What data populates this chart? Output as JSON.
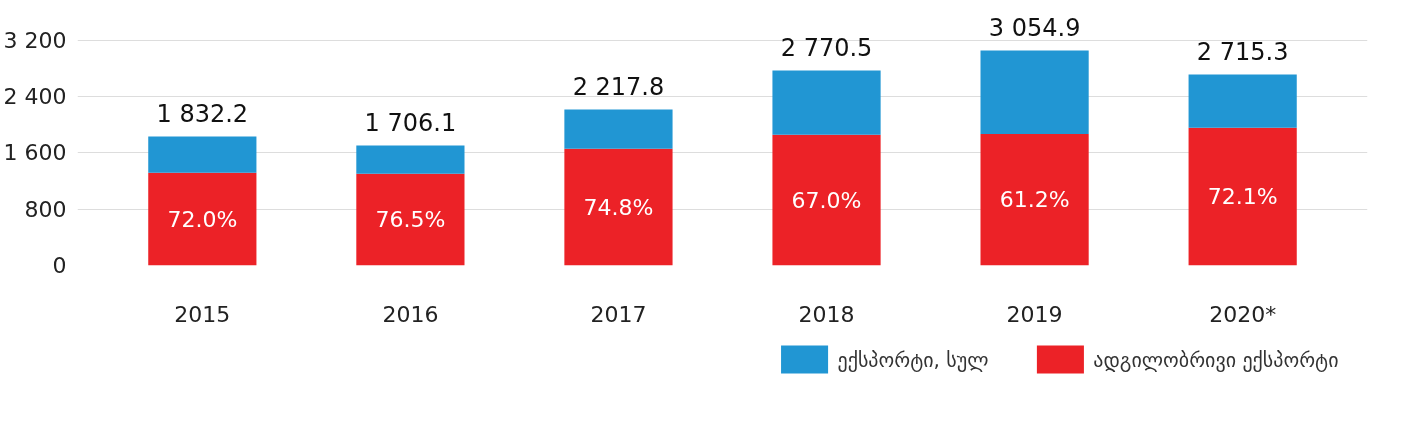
{
  "chart_data": {
    "type": "bar",
    "stacked": true,
    "categories": [
      "2015",
      "2016",
      "2017",
      "2018",
      "2019",
      "2020*"
    ],
    "series": [
      {
        "name": "ადგილობრივი ექსპორტი",
        "color": "#ec2227",
        "values": [
          1319.2,
          1305.2,
          1658.9,
          1856.2,
          1869.6,
          1957.7
        ]
      },
      {
        "name": "ექსპორტი, სულ",
        "color": "#2196d3",
        "values": [
          513.0,
          400.9,
          558.9,
          914.3,
          1185.3,
          757.6
        ]
      }
    ],
    "totals": [
      "1 832.2",
      "1 706.1",
      "2 217.8",
      "2 770.5",
      "3 054.9",
      "2 715.3"
    ],
    "annotations": [
      "72.0%",
      "76.5%",
      "74.8%",
      "67.0%",
      "61.2%",
      "72.1%"
    ],
    "ylim": [
      0,
      3200
    ],
    "yticks": [
      {
        "value": 0,
        "label": "0"
      },
      {
        "value": 800,
        "label": "800"
      },
      {
        "value": 1600,
        "label": "1 600"
      },
      {
        "value": 2400,
        "label": "2 400"
      },
      {
        "value": 3200,
        "label": "3 200"
      }
    ],
    "grid": "y",
    "legend": "bottom right"
  }
}
